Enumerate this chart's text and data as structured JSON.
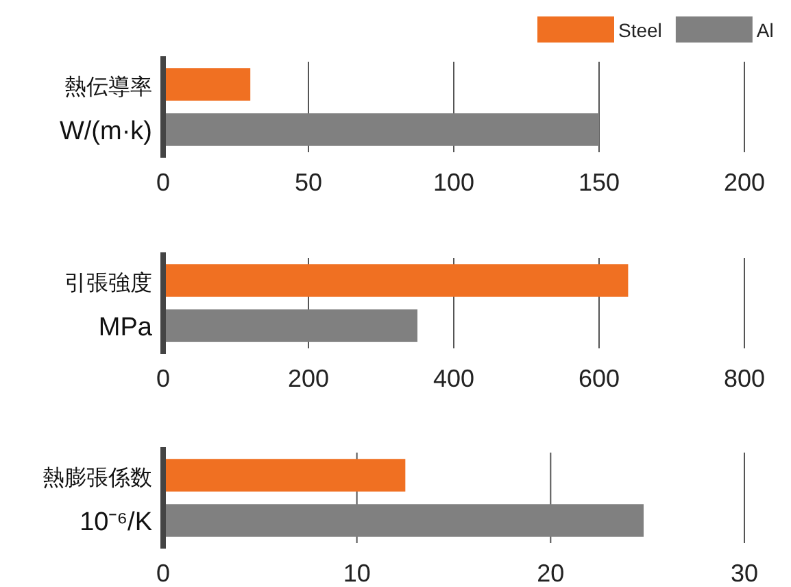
{
  "chart_data": [
    {
      "type": "bar",
      "orientation": "horizontal",
      "stacked": true,
      "categories": [
        "熱伝導率",
        "W/(m·k)"
      ],
      "xlim": [
        0,
        200
      ],
      "xticks": [
        0,
        50,
        100,
        150,
        200
      ],
      "grid": "x",
      "legend": "top right",
      "series": [
        {
          "name": "Steel",
          "color": "#f07022",
          "values": [
            30,
            null
          ]
        },
        {
          "name": "Al",
          "color": "#808080",
          "values": [
            null,
            150
          ]
        }
      ]
    },
    {
      "type": "bar",
      "orientation": "horizontal",
      "stacked": true,
      "categories": [
        "引張強度",
        "MPa"
      ],
      "xlim": [
        0,
        800
      ],
      "xticks": [
        0,
        200,
        400,
        600,
        800
      ],
      "grid": "x",
      "series": [
        {
          "color": "#f07022",
          "values": [
            640,
            null
          ]
        },
        {
          "color": "#808080",
          "values": [
            null,
            350
          ]
        }
      ]
    },
    {
      "type": "bar",
      "orientation": "horizontal",
      "stacked": true,
      "categories": [
        "熱膨張係数",
        "10⁻⁶/K"
      ],
      "xlim": [
        0,
        30
      ],
      "xticks": [
        0,
        10,
        20,
        30
      ],
      "grid": "x",
      "series": [
        {
          "color": "#f07022",
          "values": [
            12.5,
            null
          ]
        },
        {
          "color": "#808080",
          "values": [
            null,
            24.8
          ]
        }
      ]
    }
  ]
}
